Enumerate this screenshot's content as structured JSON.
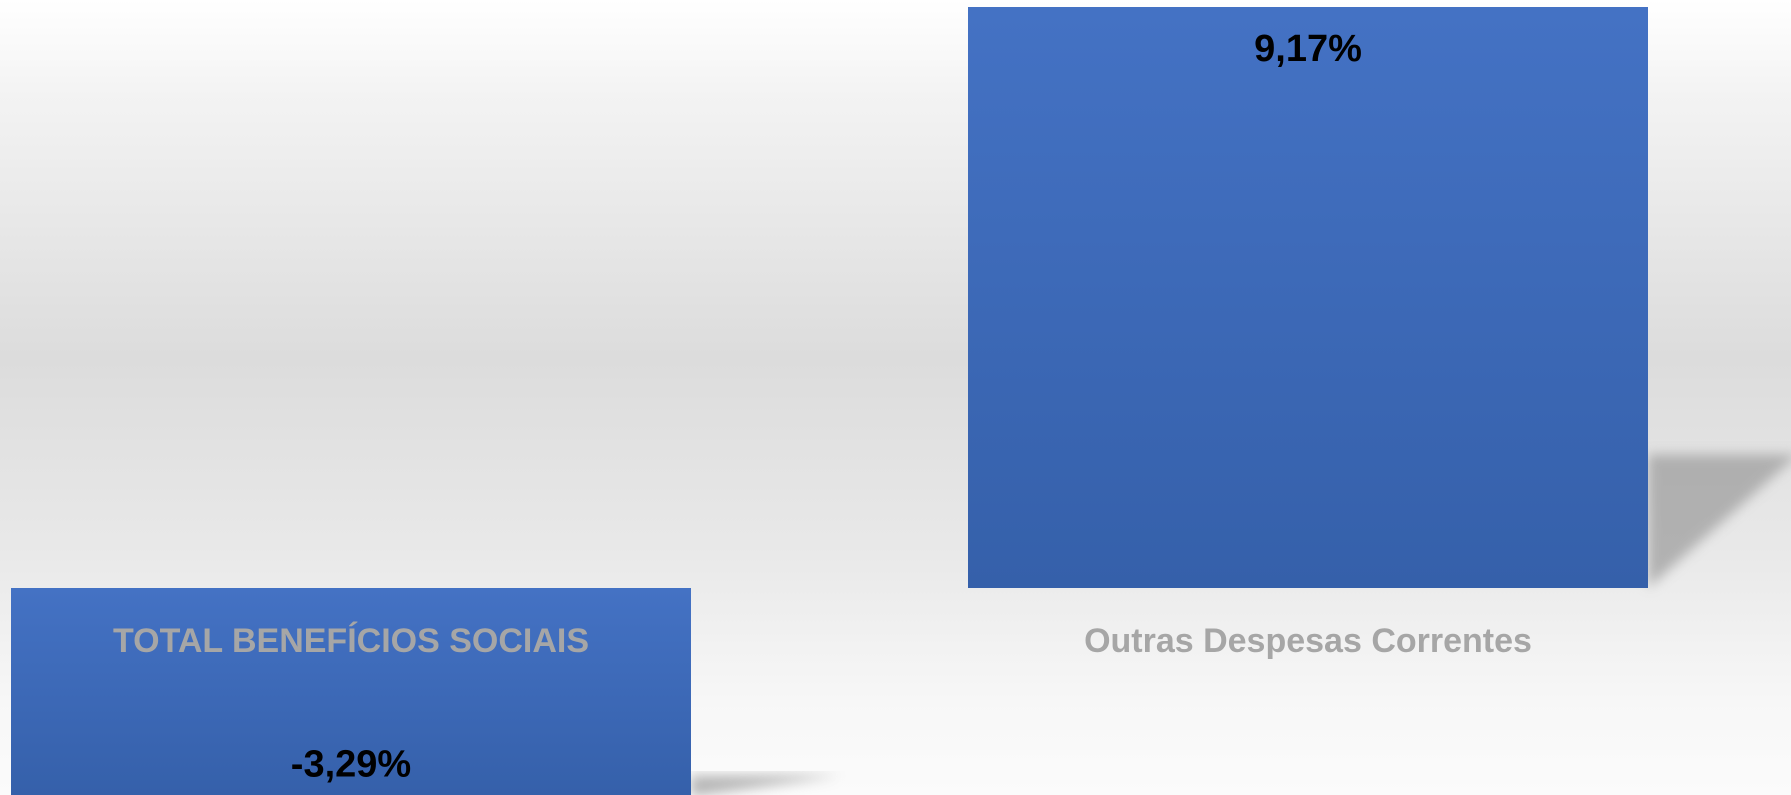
{
  "chart_data": {
    "type": "bar",
    "categories": [
      "TOTAL BENEFÍCIOS SOCIAIS",
      "Outras Despesas Correntes"
    ],
    "values": [
      -3.29,
      9.17
    ],
    "value_labels": [
      "-3,29%",
      "9,17%"
    ],
    "ylim": [
      -3.29,
      9.17
    ],
    "grid": false,
    "legend": "none",
    "colors": {
      "bar_top": "#4472c4",
      "bar_bottom": "#3560aa",
      "category_text": "#a6a6a6",
      "value_text": "#000000",
      "shadow": "#9a9a9a"
    }
  }
}
